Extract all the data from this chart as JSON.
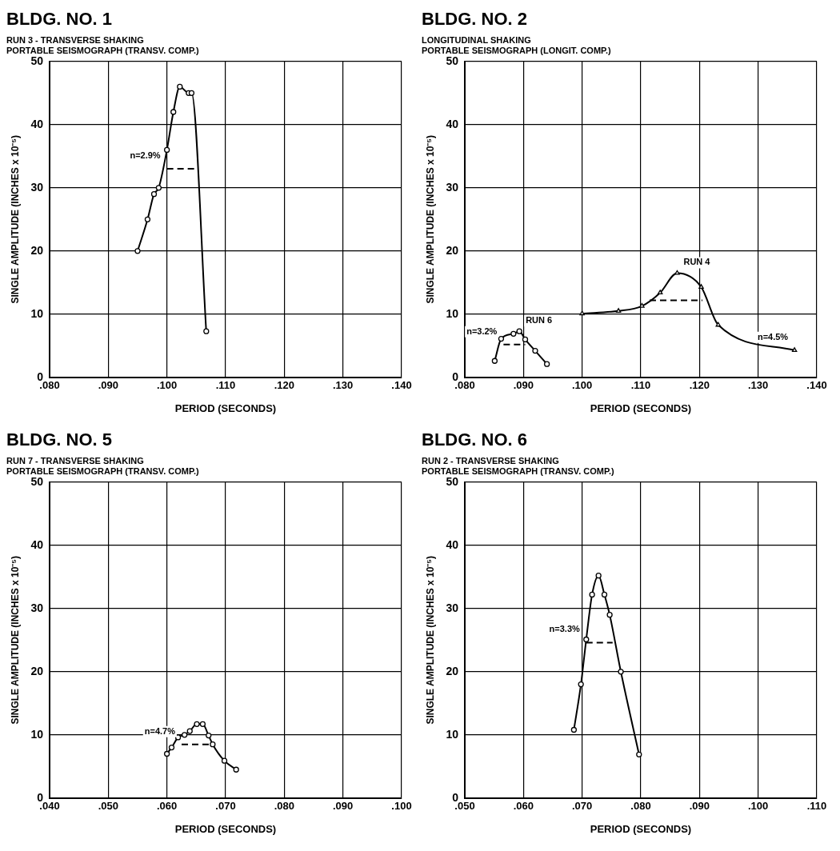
{
  "chart_data": [
    {
      "type": "line",
      "title": "BLDG. NO. 1",
      "subtitle": "RUN 3 - TRANSVERSE SHAKING\nPORTABLE SEISMOGRAPH (TRANSV. COMP.)",
      "xlabel": "PERIOD (SECONDS)",
      "ylabel": "SINGLE AMPLITUDE (INCHES x 10⁻⁵)",
      "xlim": [
        0.08,
        0.14
      ],
      "xticks": [
        {
          "value": 0.08,
          "label": ".080"
        },
        {
          "value": 0.09,
          "label": ".090"
        },
        {
          "value": 0.1,
          "label": ".100"
        },
        {
          "value": 0.11,
          "label": ".110"
        },
        {
          "value": 0.12,
          "label": ".120"
        },
        {
          "value": 0.13,
          "label": ".130"
        },
        {
          "value": 0.14,
          "label": ".140"
        }
      ],
      "ylim": [
        0,
        50
      ],
      "yticks": [
        0,
        10,
        20,
        30,
        40,
        50
      ],
      "grid": true,
      "legend": false,
      "series": [
        {
          "color": "#000000",
          "marker": "circle",
          "x": [
            0.095,
            0.0967,
            0.0978,
            0.0986,
            0.1,
            0.1011,
            0.1022,
            0.1037,
            0.1042,
            0.1067
          ],
          "values": [
            20,
            25,
            29,
            30,
            36,
            42,
            46,
            45,
            45,
            7.3
          ]
        },
        {
          "color": "#000000",
          "marker": "none",
          "line_style": "dashed",
          "x": [
            0.1,
            0.1048
          ],
          "values": [
            33,
            33
          ]
        }
      ],
      "annotations": [
        {
          "text": "n=2.9%",
          "x": 0.1,
          "y": 33
        }
      ]
    },
    {
      "type": "line",
      "title": "BLDG. NO. 2",
      "subtitle": "LONGITUDINAL SHAKING\nPORTABLE SEISMOGRAPH (LONGIT. COMP.)",
      "xlabel": "PERIOD (SECONDS)",
      "ylabel": "SINGLE AMPLITUDE (INCHES x 10⁻⁵)",
      "xlim": [
        0.08,
        0.14
      ],
      "xticks": [
        {
          "value": 0.08,
          "label": ".080"
        },
        {
          "value": 0.09,
          "label": ".090"
        },
        {
          "value": 0.1,
          "label": ".100"
        },
        {
          "value": 0.11,
          "label": ".110"
        },
        {
          "value": 0.12,
          "label": ".120"
        },
        {
          "value": 0.13,
          "label": ".130"
        },
        {
          "value": 0.14,
          "label": ".140"
        }
      ],
      "ylim": [
        0,
        50
      ],
      "yticks": [
        0,
        10,
        20,
        30,
        40,
        50
      ],
      "grid": true,
      "legend": false,
      "series": [
        {
          "name": "RUN 6",
          "color": "#000000",
          "marker": "circle",
          "x": [
            0.0851,
            0.0862,
            0.0883,
            0.0893,
            0.0903,
            0.092,
            0.094
          ],
          "values": [
            2.6,
            6.1,
            6.9,
            7.3,
            6,
            4.2,
            2.1
          ]
        },
        {
          "color": "#000000",
          "marker": "none",
          "line_style": "dashed",
          "x": [
            0.0866,
            0.0903
          ],
          "values": [
            5.2,
            5.2
          ]
        },
        {
          "name": "RUN 4",
          "color": "#000000",
          "marker": "triangle",
          "x": [
            0.1,
            0.1062,
            0.1102,
            0.1133,
            0.1162,
            0.1203,
            0.1232,
            0.1362
          ],
          "values": [
            10.1,
            10.5,
            11.3,
            13.4,
            16.5,
            14.3,
            8.3,
            4.3
          ]
        },
        {
          "color": "#000000",
          "marker": "none",
          "line_style": "dashed",
          "x": [
            0.1115,
            0.1205
          ],
          "values": [
            12.2,
            12.2
          ]
        }
      ],
      "annotations": [
        {
          "text": "n=3.2%",
          "x": 0.0866,
          "y": 5.2
        },
        {
          "text": "n=4.5%",
          "x": 0.1362,
          "y": 4.3
        }
      ]
    },
    {
      "type": "line",
      "title": "BLDG. NO. 5",
      "subtitle": "RUN 7 - TRANSVERSE SHAKING\nPORTABLE SEISMOGRAPH (TRANSV. COMP.)",
      "xlabel": "PERIOD (SECONDS)",
      "ylabel": "SINGLE AMPLITUDE (INCHES x 10⁻⁵)",
      "xlim": [
        0.04,
        0.1
      ],
      "xticks": [
        {
          "value": 0.04,
          "label": ".040"
        },
        {
          "value": 0.05,
          "label": ".050"
        },
        {
          "value": 0.06,
          "label": ".060"
        },
        {
          "value": 0.07,
          "label": ".070"
        },
        {
          "value": 0.08,
          "label": ".080"
        },
        {
          "value": 0.09,
          "label": ".090"
        },
        {
          "value": 0.1,
          "label": ".100"
        }
      ],
      "ylim": [
        0,
        50
      ],
      "yticks": [
        0,
        10,
        20,
        30,
        40,
        50
      ],
      "grid": true,
      "legend": false,
      "series": [
        {
          "color": "#000000",
          "marker": "circle",
          "x": [
            0.06,
            0.0608,
            0.0619,
            0.063,
            0.0639,
            0.0651,
            0.0661,
            0.0671,
            0.0678,
            0.0698,
            0.0718
          ],
          "values": [
            7,
            8,
            9.6,
            10,
            10.6,
            11.7,
            11.7,
            9.9,
            8.5,
            5.9,
            4.5
          ]
        },
        {
          "color": "#000000",
          "marker": "none",
          "line_style": "dashed",
          "x": [
            0.0625,
            0.0675
          ],
          "values": [
            8.5,
            8.5
          ]
        }
      ],
      "annotations": [
        {
          "text": "n=4.7%",
          "x": 0.0625,
          "y": 8.5
        }
      ]
    },
    {
      "type": "line",
      "title": "BLDG. NO. 6",
      "subtitle": "RUN 2 - TRANSVERSE SHAKING\nPORTABLE SEISMOGRAPH (TRANSV. COMP.)",
      "xlabel": "PERIOD (SECONDS)",
      "ylabel": "SINGLE AMPLITUDE (INCHES x 10⁻⁵)",
      "xlim": [
        0.05,
        0.11
      ],
      "xticks": [
        {
          "value": 0.05,
          "label": ".050"
        },
        {
          "value": 0.06,
          "label": ".060"
        },
        {
          "value": 0.07,
          "label": ".070"
        },
        {
          "value": 0.08,
          "label": ".080"
        },
        {
          "value": 0.09,
          "label": ".090"
        },
        {
          "value": 0.1,
          "label": ".100"
        },
        {
          "value": 0.11,
          "label": ".110"
        }
      ],
      "ylim": [
        0,
        50
      ],
      "yticks": [
        0,
        10,
        20,
        30,
        40,
        50
      ],
      "grid": true,
      "legend": false,
      "series": [
        {
          "color": "#000000",
          "marker": "circle",
          "x": [
            0.0686,
            0.0698,
            0.0707,
            0.0717,
            0.0728,
            0.0738,
            0.0747,
            0.0766,
            0.0797
          ],
          "values": [
            10.8,
            18,
            25.1,
            32.2,
            35.2,
            32.2,
            29,
            20,
            6.9
          ]
        },
        {
          "color": "#000000",
          "marker": "none",
          "line_style": "dashed",
          "x": [
            0.0707,
            0.0752
          ],
          "values": [
            24.6,
            24.6
          ]
        }
      ],
      "annotations": [
        {
          "text": "n=3.3%",
          "x": 0.0707,
          "y": 24.6
        }
      ]
    }
  ]
}
